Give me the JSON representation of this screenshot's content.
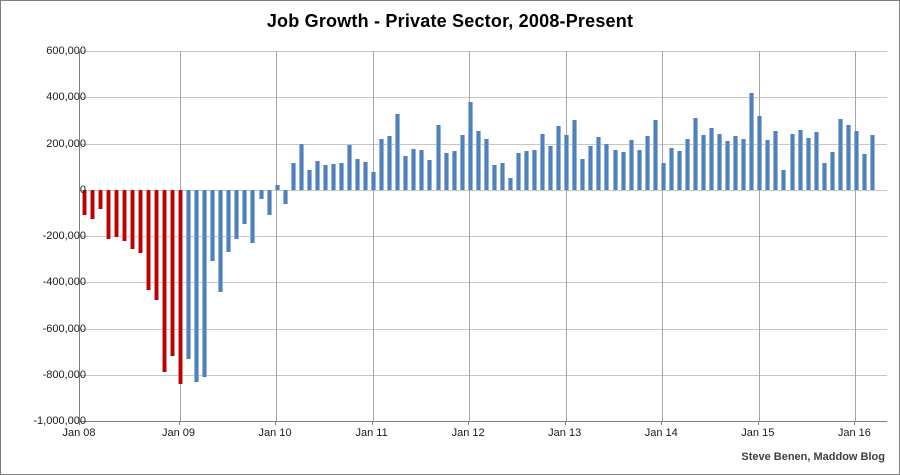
{
  "title": "Job Growth - Private Sector, 2008-Present",
  "attribution": "Steve Benen, Maddow Blog",
  "chart_data": {
    "type": "bar",
    "title": "Job Growth - Private Sector, 2008-Present",
    "xlabel": "",
    "ylabel": "",
    "unit": "net private-sector jobs added per month",
    "ylim": [
      -1000000,
      600000
    ],
    "ytick_step": 200000,
    "ytick_labels": [
      "600,000",
      "400,000",
      "200,000",
      "0",
      "-200,000",
      "-400,000",
      "-600,000",
      "-800,000",
      "-1,000,000"
    ],
    "xtick_labels": [
      "Jan 08",
      "Jan 09",
      "Jan 10",
      "Jan 11",
      "Jan 12",
      "Jan 13",
      "Jan 14",
      "Jan 15",
      "Jan 16"
    ],
    "grid": true,
    "legend": false,
    "colors": {
      "loss_period_bar": "#c00000",
      "recovery_period_bar": "#4f81bd",
      "hgrid": "#c6c6c6",
      "vgrid": "#a6a6a6",
      "axis": "#808080"
    },
    "red_bar_count": 13,
    "series": [
      {
        "year": "2008",
        "values": [
          -110000,
          -125000,
          -85000,
          -215000,
          -205000,
          -220000,
          -255000,
          -275000,
          -435000,
          -475000,
          -790000,
          -720000
        ]
      },
      {
        "year": "2009",
        "values": [
          -840000,
          -730000,
          -830000,
          -810000,
          -310000,
          -440000,
          -270000,
          -215000,
          -150000,
          -230000,
          -40000,
          -110000
        ]
      },
      {
        "year": "2010",
        "values": [
          20000,
          -60000,
          115000,
          200000,
          85000,
          125000,
          105000,
          110000,
          115000,
          195000,
          135000,
          120000
        ]
      },
      {
        "year": "2011",
        "values": [
          75000,
          218000,
          232000,
          326000,
          147000,
          178000,
          173000,
          127000,
          278000,
          159000,
          166000,
          235000
        ]
      },
      {
        "year": "2012",
        "values": [
          380000,
          253000,
          218000,
          106000,
          115000,
          52000,
          159000,
          169000,
          172000,
          243000,
          189000,
          277000
        ]
      },
      {
        "year": "2013",
        "values": [
          236000,
          302000,
          135000,
          191000,
          227000,
          200000,
          172000,
          162000,
          214000,
          174000,
          233000,
          302000
        ]
      },
      {
        "year": "2014",
        "values": [
          115000,
          180000,
          169000,
          218000,
          312000,
          236000,
          268000,
          243000,
          209000,
          231000,
          221000,
          420000
        ]
      },
      {
        "year": "2015",
        "values": [
          317000,
          214000,
          253000,
          84000,
          243000,
          258000,
          224000,
          248000,
          115000,
          162000,
          305000,
          280000
        ]
      },
      {
        "year": "2016",
        "values": [
          253000,
          155000,
          236000
        ]
      }
    ]
  }
}
